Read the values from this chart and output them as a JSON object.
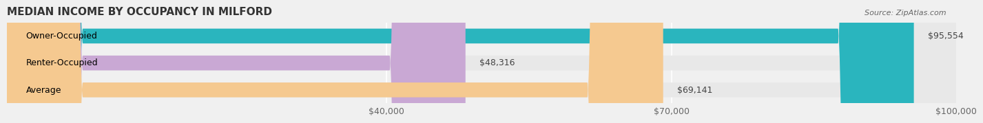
{
  "title": "MEDIAN INCOME BY OCCUPANCY IN MILFORD",
  "source": "Source: ZipAtlas.com",
  "categories": [
    "Owner-Occupied",
    "Renter-Occupied",
    "Average"
  ],
  "values": [
    95554,
    48316,
    69141
  ],
  "bar_colors": [
    "#2ab5be",
    "#c9a8d4",
    "#f5c990"
  ],
  "label_colors": [
    "#ffffff",
    "#555555",
    "#555555"
  ],
  "value_labels": [
    "$95,554",
    "$48,316",
    "$69,141"
  ],
  "xlim": [
    0,
    100000
  ],
  "xticks": [
    40000,
    70000,
    100000
  ],
  "xtick_labels": [
    "$40,000",
    "$70,000",
    "$100,000"
  ],
  "bar_height": 0.55,
  "background_color": "#f0f0f0",
  "bar_bg_color": "#e8e8e8",
  "title_fontsize": 11,
  "label_fontsize": 9,
  "value_fontsize": 9,
  "tick_fontsize": 9
}
